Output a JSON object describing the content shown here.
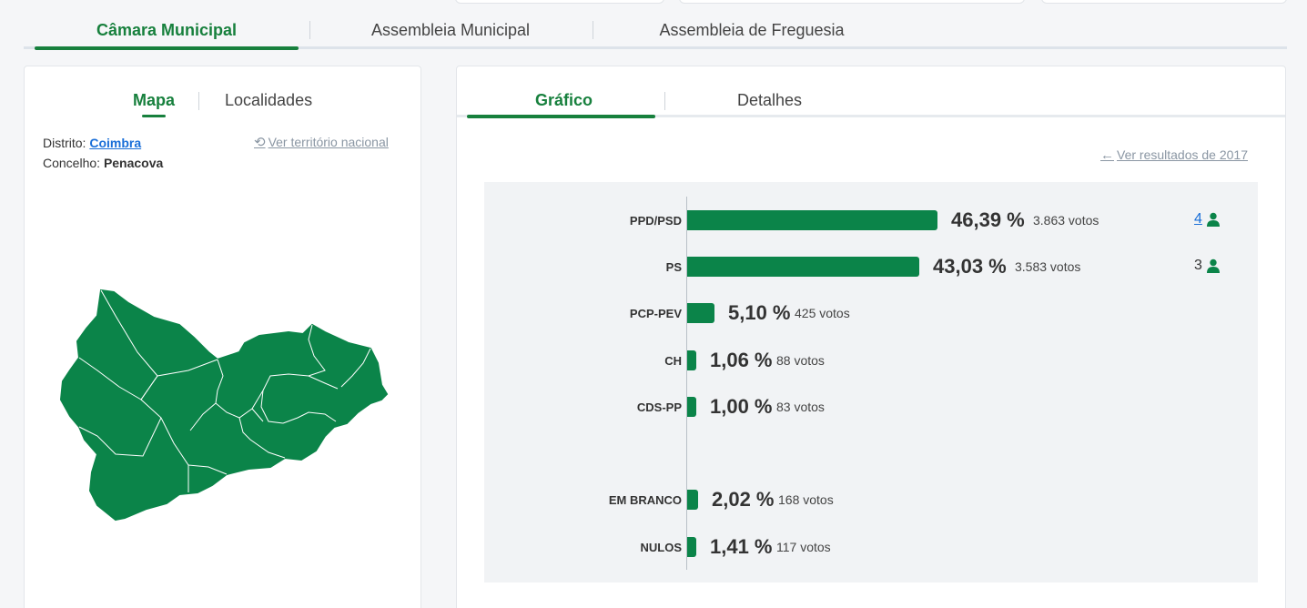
{
  "main_tabs": [
    {
      "label": "Câmara Municipal",
      "active": true
    },
    {
      "label": "Assembleia Municipal",
      "active": false
    },
    {
      "label": "Assembleia de Freguesia",
      "active": false
    }
  ],
  "map_panel": {
    "tabs": [
      {
        "label": "Mapa",
        "active": true
      },
      {
        "label": "Localidades",
        "active": false
      }
    ],
    "distrito_label": "Distrito:",
    "distrito_value": "Coimbra",
    "concelho_label": "Concelho:",
    "concelho_value": "Penacova",
    "national_link": "Ver território nacional",
    "map_color": "#0b8449"
  },
  "results_panel": {
    "tabs": [
      {
        "label": "Gráfico",
        "active": true
      },
      {
        "label": "Detalhes",
        "active": false
      }
    ],
    "previous_results_link": "Ver resultados de 2017"
  },
  "chart_data": {
    "type": "bar",
    "orientation": "horizontal",
    "bar_color": "#0b8449",
    "categories": [
      "PPD/PSD",
      "PS",
      "PCP-PEV",
      "CH",
      "CDS-PP",
      "EM BRANCO",
      "NULOS"
    ],
    "values": [
      46.39,
      43.03,
      5.1,
      1.06,
      1.0,
      2.02,
      1.41
    ],
    "rows": [
      {
        "party": "PPD/PSD",
        "percent": 46.39,
        "percent_label": "46,39 %",
        "votes_label": "3.863 votos",
        "mandates": "4",
        "mandates_link": true
      },
      {
        "party": "PS",
        "percent": 43.03,
        "percent_label": "43,03 %",
        "votes_label": "3.583 votos",
        "mandates": "3",
        "mandates_link": false
      },
      {
        "party": "PCP-PEV",
        "percent": 5.1,
        "percent_label": "5,10 %",
        "votes_label": "425 votos",
        "mandates": "",
        "mandates_link": false
      },
      {
        "party": "CH",
        "percent": 1.06,
        "percent_label": "1,06 %",
        "votes_label": "88 votos",
        "mandates": "",
        "mandates_link": false
      },
      {
        "party": "CDS-PP",
        "percent": 1.0,
        "percent_label": "1,00 %",
        "votes_label": "83 votos",
        "mandates": "",
        "mandates_link": false
      },
      {
        "party": "EM BRANCO",
        "percent": 2.02,
        "percent_label": "2,02 %",
        "votes_label": "168 votos",
        "mandates": "",
        "mandates_link": false
      },
      {
        "party": "NULOS",
        "percent": 1.41,
        "percent_label": "1,41 %",
        "votes_label": "117 votos",
        "mandates": "",
        "mandates_link": false
      }
    ]
  },
  "icons": {
    "undo": "undo-icon",
    "arrow_left": "arrow-left-icon",
    "person": "person-icon"
  }
}
